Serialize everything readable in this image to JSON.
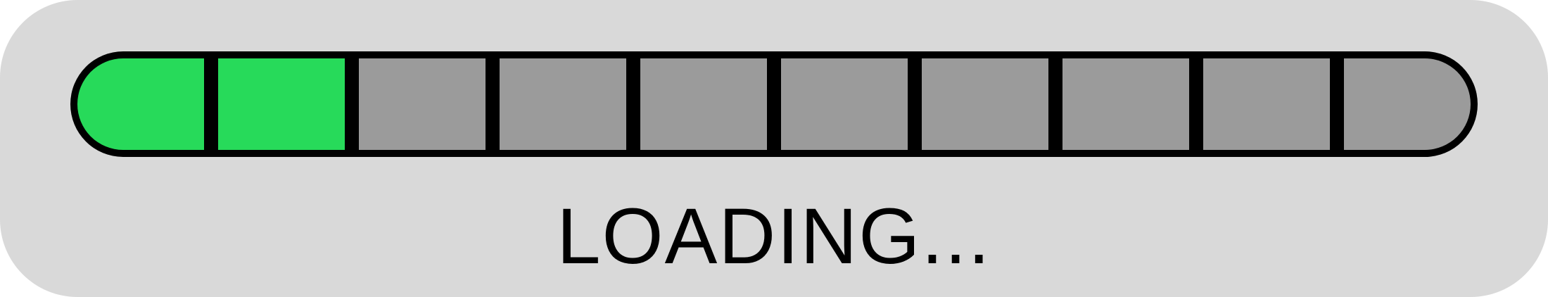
{
  "loader": {
    "label": "LOADING...",
    "total_segments": 10,
    "filled_segments": 2,
    "progress_fraction": 0.2
  },
  "colors": {
    "panel_background": "#d9d9d9",
    "track_border": "#000000",
    "segment_filled": "#27da5a",
    "segment_empty": "#9b9b9b",
    "label_text": "#000000"
  }
}
